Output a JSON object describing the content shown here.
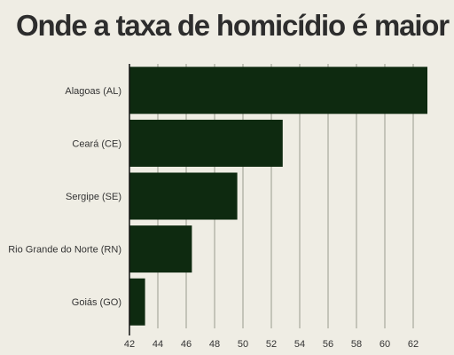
{
  "chart_data": {
    "type": "bar",
    "orientation": "horizontal",
    "title": "Onde a taxa de homicídio é maior",
    "categories": [
      "Alagoas (AL)",
      "Ceará (CE)",
      "Sergipe (SE)",
      "Rio Grande do Norte (RN)",
      "Goiás (GO)"
    ],
    "values": [
      63.0,
      52.8,
      49.6,
      46.4,
      43.1
    ],
    "xlim": [
      42,
      64
    ],
    "xticks": [
      "42",
      "44",
      "46",
      "48",
      "50",
      "52",
      "54",
      "56",
      "58",
      "60",
      "62"
    ],
    "xlabel": "",
    "ylabel": "",
    "grid": true,
    "bar_color": "#0e2a10"
  }
}
